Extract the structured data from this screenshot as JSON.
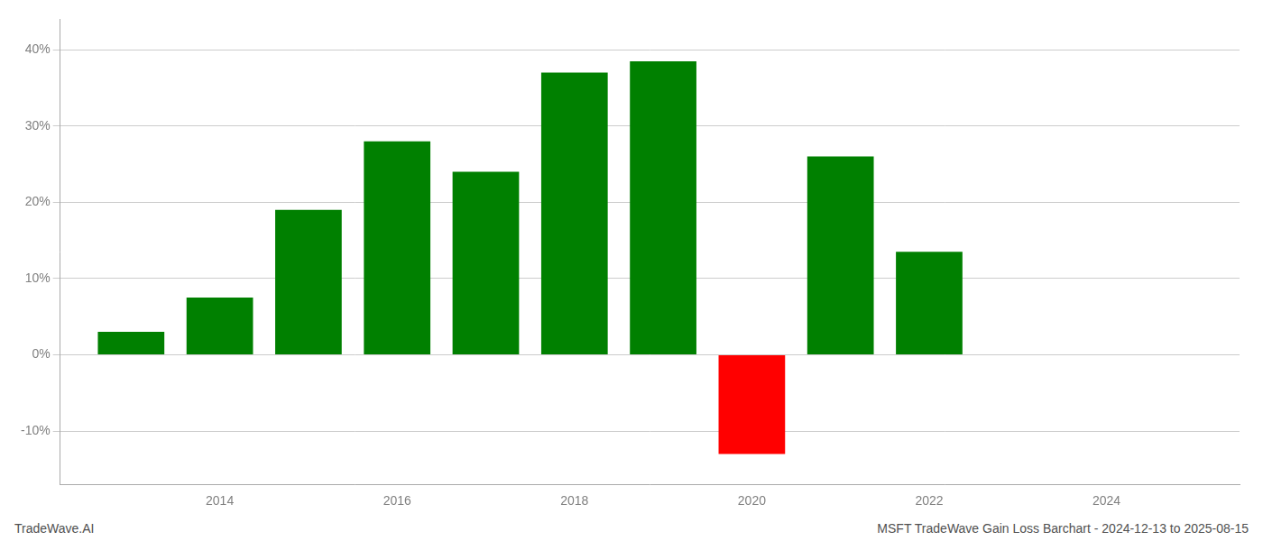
{
  "chart_data": {
    "type": "bar",
    "title": "MSFT TradeWave Gain Loss Barchart - 2024-12-13 to 2025-08-15",
    "annotations": [
      "TradeWave.AI"
    ],
    "x": [
      2013,
      2014,
      2015,
      2016,
      2017,
      2018,
      2019,
      2020,
      2021,
      2022
    ],
    "values": [
      3.0,
      7.5,
      19.0,
      28.0,
      24.0,
      37.0,
      38.5,
      -13.0,
      26.0,
      13.5
    ],
    "colors": [
      "#008000",
      "#008000",
      "#008000",
      "#008000",
      "#008000",
      "#008000",
      "#008000",
      "#ff0000",
      "#008000",
      "#008000"
    ],
    "xlim": [
      2012.2,
      2025.5
    ],
    "xticks": [
      2014,
      2016,
      2018,
      2020,
      2022,
      2024
    ],
    "ylim": [
      -17,
      44
    ],
    "yticks": [
      {
        "value": -10,
        "label": "-10%"
      },
      {
        "value": 0,
        "label": "0%"
      },
      {
        "value": 10,
        "label": "10%"
      },
      {
        "value": 20,
        "label": "20%"
      },
      {
        "value": 30,
        "label": "30%"
      },
      {
        "value": 40,
        "label": "40%"
      }
    ],
    "grid": true
  }
}
